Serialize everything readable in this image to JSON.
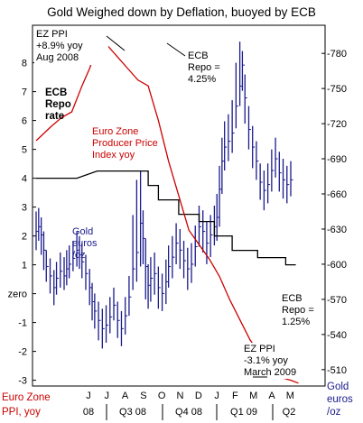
{
  "chart_data": {
    "type": "line",
    "title": "Gold Weighed down by Deflation, buoyed by ECB",
    "left_axis": {
      "label_line1": "Euro Zone",
      "label_line2": "PPI, yoy",
      "ylim": [
        -3.2,
        9.3
      ],
      "ticks": [
        "8",
        "7",
        "6",
        "5",
        "4",
        "3",
        "2",
        "1",
        "zero",
        "-1",
        "-2",
        "-3"
      ],
      "tick_values": [
        8,
        7,
        6,
        5,
        4,
        3,
        2,
        1,
        0,
        -1,
        -2,
        -3
      ]
    },
    "right_axis": {
      "label_line1": "Gold",
      "label_line2": "euros",
      "label_line3": "/oz",
      "ylim": [
        496,
        804
      ],
      "ticks": [
        "780",
        "750",
        "720",
        "690",
        "660",
        "630",
        "600",
        "570",
        "540",
        "510"
      ],
      "tick_values": [
        780,
        750,
        720,
        690,
        660,
        630,
        600,
        570,
        540,
        510
      ]
    },
    "x_axis": {
      "months": [
        "J",
        "J",
        "A",
        "S",
        "O",
        "N",
        "D",
        "J",
        "F",
        "M",
        "A",
        "M"
      ],
      "groups": [
        "08",
        "Q3 08",
        "Q4 08",
        "Q1 09",
        "Q2"
      ]
    },
    "series": [
      {
        "name": "Euro Zone Producer Price Index yoy",
        "color": "#cc0000",
        "x": [
          0,
          0.6,
          1.0,
          1.4,
          1.8,
          2.1,
          2.3,
          2.5,
          2.8,
          3.2,
          3.6,
          4.0,
          4.4,
          4.8,
          5.2,
          5.6,
          6.0,
          6.4,
          6.8,
          7.2,
          7.6,
          8.0,
          8.4,
          8.8,
          9.2,
          9.6,
          10.0,
          10.3
        ],
        "values": [
          5.3,
          5.8,
          6.1,
          6.3,
          7.2,
          7.8,
          8.3,
          8.9,
          8.6,
          8.2,
          7.8,
          7.4,
          7.2,
          6.0,
          4.6,
          3.4,
          2.2,
          1.7,
          1.2,
          0.6,
          -0.2,
          -0.9,
          -1.6,
          -2.1,
          -2.6,
          -2.9,
          -3.0,
          -3.1
        ],
        "annotations": [
          "EZ PPI",
          "+8.9% yoy",
          "Aug 2008",
          "EZ PPI",
          "-3.1% yoy",
          "March 2009"
        ]
      },
      {
        "name": "ECB Repo rate",
        "color": "#000000",
        "x": [
          0,
          1.6,
          1.6,
          2.4,
          2.4,
          4.4,
          4.4,
          4.8,
          4.8,
          5.6,
          5.6,
          6.4,
          6.4,
          7.0,
          7.0,
          7.7,
          7.7,
          8.7,
          8.7,
          9.8,
          9.8,
          10.2
        ],
        "values": [
          4.0,
          4.0,
          4.0,
          4.25,
          4.25,
          4.25,
          3.75,
          3.75,
          3.25,
          3.25,
          2.75,
          2.75,
          2.5,
          2.5,
          2.0,
          2.0,
          1.5,
          1.5,
          1.25,
          1.25,
          1.0,
          1.0
        ],
        "annotations": [
          "ECB",
          "Repo =",
          "4.25%",
          "ECB",
          "Repo =",
          "1.25%"
        ]
      },
      {
        "name": "Gold euros /oz",
        "color": "#1a1a8c",
        "type": "ohlc",
        "x": [
          0.0,
          0.1,
          0.2,
          0.3,
          0.4,
          0.55,
          0.7,
          0.8,
          0.95,
          1.1,
          1.2,
          1.3,
          1.45,
          1.6,
          1.7,
          1.8,
          1.95,
          2.1,
          2.2,
          2.3,
          2.45,
          2.6,
          2.75,
          2.9,
          3.05,
          3.2,
          3.35,
          3.5,
          3.65,
          3.8,
          3.95,
          4.1,
          4.2,
          4.3,
          4.4,
          4.5,
          4.65,
          4.8,
          4.95,
          5.1,
          5.2,
          5.35,
          5.5,
          5.65,
          5.8,
          5.95,
          6.1,
          6.25,
          6.4,
          6.55,
          6.7,
          6.85,
          7.0,
          7.1,
          7.2,
          7.3,
          7.4,
          7.55,
          7.7,
          7.85,
          8.0,
          8.1,
          8.2,
          8.35,
          8.5,
          8.65,
          8.8,
          8.95,
          9.1,
          9.25,
          9.4,
          9.55,
          9.7,
          9.85,
          10.0
        ],
        "values": [
          628,
          632,
          625,
          612,
          598,
          590,
          580,
          588,
          594,
          590,
          596,
          600,
          605,
          612,
          608,
          602,
          592,
          580,
          568,
          560,
          552,
          545,
          548,
          555,
          565,
          552,
          545,
          556,
          572,
          596,
          610,
          635,
          622,
          598,
          582,
          588,
          592,
          580,
          575,
          585,
          598,
          606,
          618,
          612,
          603,
          596,
          600,
          615,
          632,
          628,
          618,
          625,
          632,
          640,
          664,
          688,
          700,
          705,
          712,
          735,
          752,
          770,
          742,
          715,
          700,
          688,
          670,
          663,
          668,
          680,
          690,
          678,
          672,
          668,
          672
        ],
        "low": [
          612,
          620,
          608,
          595,
          585,
          575,
          565,
          574,
          580,
          578,
          582,
          588,
          594,
          598,
          596,
          588,
          578,
          565,
          552,
          545,
          535,
          528,
          533,
          541,
          552,
          537,
          530,
          540,
          556,
          578,
          585,
          598,
          600,
          570,
          562,
          568,
          574,
          562,
          560,
          566,
          580,
          588,
          600,
          596,
          588,
          578,
          584,
          598,
          615,
          610,
          600,
          606,
          616,
          620,
          632,
          660,
          680,
          688,
          695,
          716,
          735,
          748,
          720,
          698,
          682,
          672,
          655,
          646,
          652,
          662,
          674,
          662,
          656,
          652,
          658
        ],
        "high": [
          645,
          648,
          640,
          628,
          612,
          605,
          595,
          602,
          610,
          606,
          612,
          616,
          620,
          628,
          624,
          618,
          608,
          596,
          584,
          575,
          568,
          562,
          565,
          572,
          580,
          568,
          560,
          572,
          590,
          642,
          672,
          680,
          646,
          622,
          600,
          606,
          610,
          598,
          592,
          604,
          616,
          624,
          635,
          630,
          620,
          614,
          618,
          633,
          650,
          646,
          636,
          642,
          650,
          660,
          684,
          708,
          722,
          728,
          740,
          772,
          790,
          782,
          762,
          735,
          718,
          705,
          686,
          680,
          686,
          698,
          708,
          696,
          690,
          684,
          688
        ]
      }
    ],
    "labels": {
      "ezppi_top": [
        "EZ PPI",
        "+8.9% yoy",
        "Aug 2008"
      ],
      "ecb_top": [
        "ECB",
        "Repo =",
        "4.25%"
      ],
      "ecb_repo_rate": [
        "ECB",
        "Repo",
        "rate"
      ],
      "ppi_series": [
        "Euro Zone",
        "Producer Price",
        "Index yoy"
      ],
      "gold_series": [
        "Gold",
        "euros",
        "/oz"
      ],
      "ecb_bottom": [
        "ECB",
        "Repo =",
        "1.25%"
      ],
      "ezppi_bottom": [
        "EZ PPI",
        "-3.1% yoy",
        "March 2009"
      ]
    },
    "colors": {
      "ppi": "#cc0000",
      "ecb": "#000000",
      "gold": "#1a1a8c",
      "axis_label_red": "#cc0000",
      "axis_label_blue": "#1a1a8c"
    },
    "grid": false
  }
}
